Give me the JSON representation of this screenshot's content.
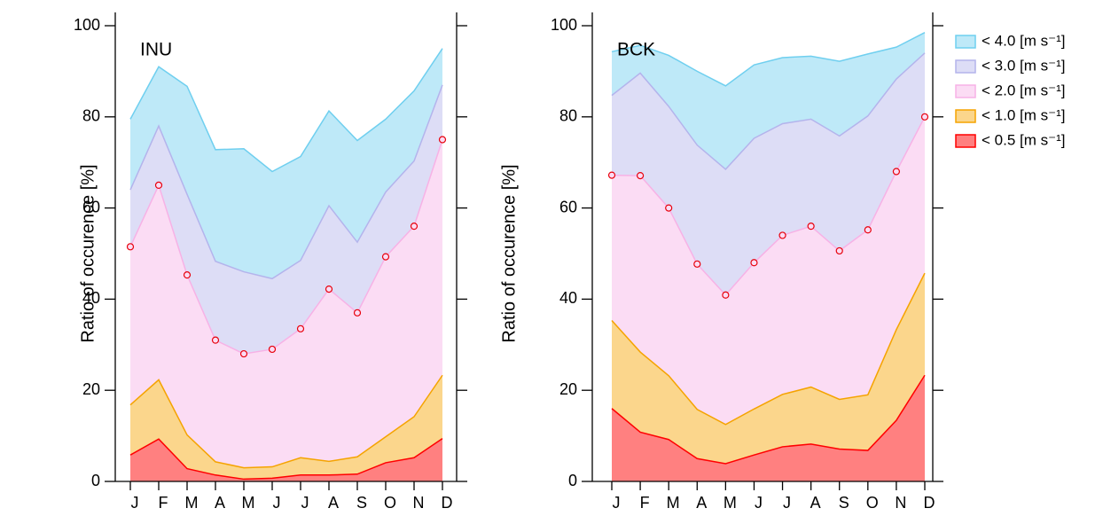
{
  "chart_data": [
    {
      "type": "area",
      "title": "INU",
      "ylabel": "Ratio of occurence [%]",
      "categories": [
        "J",
        "F",
        "M",
        "A",
        "M",
        "J",
        "J",
        "A",
        "S",
        "O",
        "N",
        "D"
      ],
      "ylim": [
        0,
        100
      ],
      "yticks": [
        0,
        20,
        40,
        60,
        80,
        100
      ],
      "series": [
        {
          "color": "#6fcfef",
          "values": [
            79.5,
            91,
            86.7,
            72.8,
            73,
            68,
            71.3,
            81.3,
            74.8,
            79.5,
            85.7,
            95
          ]
        },
        {
          "color": "#b4b4ec",
          "values": [
            64,
            78,
            63,
            48.3,
            46,
            44.5,
            48.5,
            60.5,
            52.5,
            63.5,
            70.3,
            87
          ]
        },
        {
          "color": "#f7b2e6",
          "marker": "circle",
          "values": [
            51.5,
            65,
            45.3,
            31,
            28,
            29,
            33.5,
            42.2,
            37,
            49.3,
            56,
            75
          ]
        },
        {
          "color": "#f5a300",
          "values": [
            16.8,
            22.3,
            10.2,
            4.3,
            3,
            3.2,
            5.2,
            4.4,
            5.4,
            9.8,
            14.2,
            23.3
          ]
        },
        {
          "color": "#ff0000",
          "values": [
            5.8,
            9.3,
            2.8,
            1.4,
            0.5,
            0.7,
            1.4,
            1.4,
            1.6,
            4.1,
            5.2,
            9.4
          ]
        }
      ]
    },
    {
      "type": "area",
      "title": "BCK",
      "ylabel": "Ratio of occurence [%]",
      "legend": "right",
      "categories": [
        "J",
        "F",
        "M",
        "A",
        "M",
        "J",
        "J",
        "A",
        "S",
        "O",
        "N",
        "D"
      ],
      "ylim": [
        0,
        100
      ],
      "yticks": [
        0,
        20,
        40,
        60,
        80,
        100
      ],
      "series": [
        {
          "name": "< 4.0 [m s⁻¹]",
          "color": "#6fcfef",
          "values": [
            94.3,
            95.7,
            93.5,
            90,
            86.8,
            91.4,
            93,
            93.3,
            92.2,
            93.8,
            95.3,
            98.5
          ]
        },
        {
          "name": "< 3.0 [m s⁻¹]",
          "color": "#b4b4ec",
          "values": [
            84.7,
            89.6,
            82.3,
            73.8,
            68.5,
            75.3,
            78.5,
            79.5,
            75.8,
            80.2,
            88.3,
            94
          ]
        },
        {
          "name": "< 2.0 [m s⁻¹]",
          "color": "#f7b2e6",
          "marker": "circle",
          "values": [
            67.2,
            67.1,
            60,
            47.7,
            40.9,
            48,
            54,
            56,
            50.6,
            55.2,
            68,
            80
          ]
        },
        {
          "name": "< 1.0 [m s⁻¹]",
          "color": "#f5a300",
          "values": [
            35.3,
            28.4,
            23.2,
            15.8,
            12.5,
            15.9,
            19.1,
            20.7,
            18,
            19,
            33.3,
            45.7
          ]
        },
        {
          "name": "< 0.5 [m s⁻¹]",
          "color": "#ff0000",
          "values": [
            16,
            10.8,
            9.2,
            5,
            3.9,
            5.8,
            7.6,
            8.2,
            7.1,
            6.8,
            13.4,
            23.3
          ]
        }
      ]
    }
  ]
}
